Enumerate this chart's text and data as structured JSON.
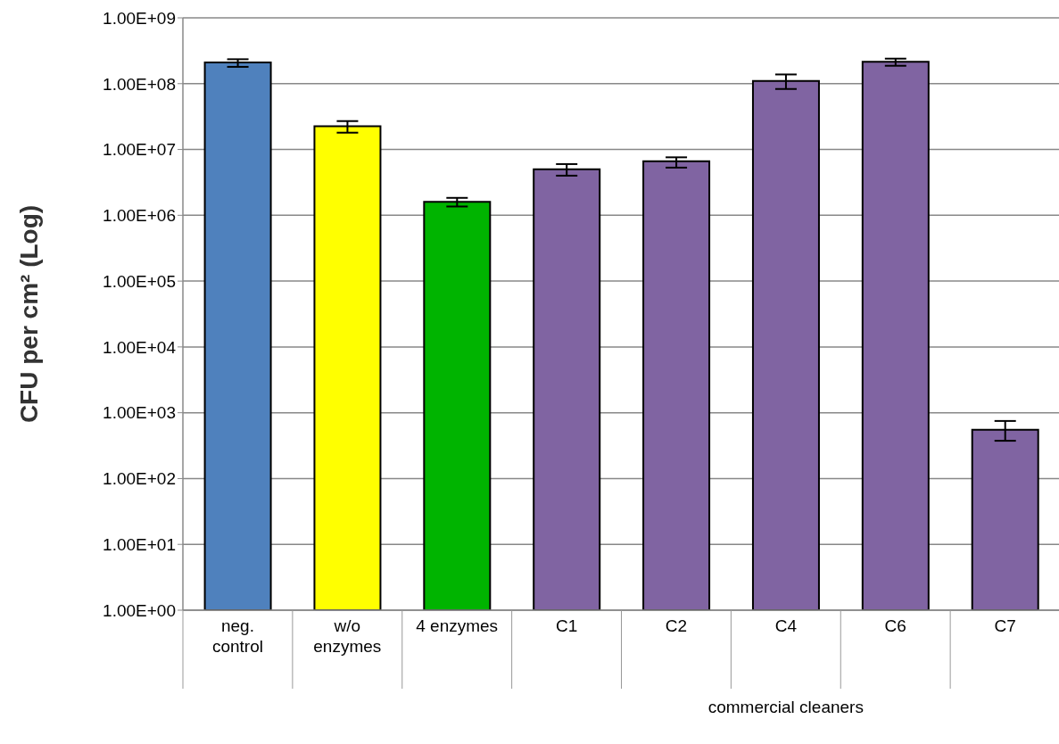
{
  "chart_data": {
    "type": "bar",
    "ylabel": "CFU per cm² (Log)",
    "categories": [
      "neg. control",
      "w/o enzymes",
      "4 enzymes",
      "C1",
      "C2",
      "C4",
      "C6",
      "C7"
    ],
    "values": [
      210000000.0,
      22600000.0,
      1600000.0,
      5000000.0,
      6600000.0,
      110000000.0,
      215000000.0,
      550
    ],
    "errors": [
      [
        180000000.0,
        235000000.0
      ],
      [
        18000000.0,
        27000000.0
      ],
      [
        1360000.0,
        1840000.0
      ],
      [
        4000000.0,
        6000000.0
      ],
      [
        5300000.0,
        7600000.0
      ],
      [
        83000000.0,
        138000000.0
      ],
      [
        187000000.0,
        240000000.0
      ],
      [
        375,
        750
      ]
    ],
    "colors": [
      "#4f81bd",
      "#ffff00",
      "#00b400",
      "#8064a2",
      "#8064a2",
      "#8064a2",
      "#8064a2",
      "#8064a2"
    ],
    "log": "y",
    "ylim": [
      1,
      1000000000.0
    ],
    "yticks": [
      {
        "value": 1,
        "label": "1.00E+00"
      },
      {
        "value": 10,
        "label": "1.00E+01"
      },
      {
        "value": 100,
        "label": "1.00E+02"
      },
      {
        "value": 1000,
        "label": "1.00E+03"
      },
      {
        "value": 10000,
        "label": "1.00E+04"
      },
      {
        "value": 100000,
        "label": "1.00E+05"
      },
      {
        "value": 1000000,
        "label": "1.00E+06"
      },
      {
        "value": 10000000,
        "label": "1.00E+07"
      },
      {
        "value": 100000000,
        "label": "1.00E+08"
      },
      {
        "value": 1000000000,
        "label": "1.00E+09"
      }
    ],
    "grid": "y",
    "legend": false,
    "annotations": [
      "commercial cleaners"
    ]
  }
}
